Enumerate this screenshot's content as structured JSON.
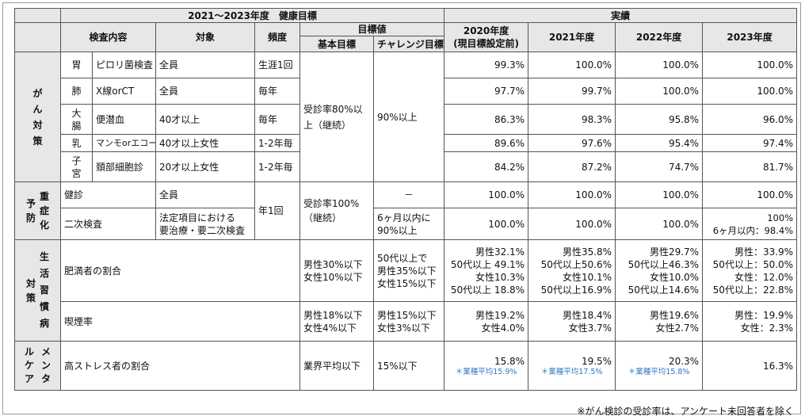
{
  "header": {
    "plan_title": "2021～2023年度　健康目標",
    "results_title": "実績",
    "col_exam": "検査内容",
    "col_target": "対象",
    "col_freq": "頻度",
    "col_goal": "目標値",
    "col_goal_basic": "基本目標",
    "col_goal_challenge": "チャレンジ目標",
    "col_2020_line1": "2020年度",
    "col_2020_line2": "(現目標設定前)",
    "col_2021": "2021年度",
    "col_2022": "2022年度",
    "col_2023": "2023年度"
  },
  "cancer": {
    "category": "がん対策",
    "basic_goal": "受診率80%以上（継続）",
    "challenge_goal": "90%以上",
    "rows": [
      {
        "organ": "胃",
        "exam": "ピロリ菌検査",
        "target": "全員",
        "freq": "生涯1回",
        "r2020": "99.3%",
        "r2021": "100.0%",
        "r2022": "100.0%",
        "r2023": "100.0%"
      },
      {
        "organ": "肺",
        "exam": "X線orCT",
        "target": "全員",
        "freq": "毎年",
        "r2020": "97.7%",
        "r2021": "99.7%",
        "r2022": "100.0%",
        "r2023": "100.0%"
      },
      {
        "organ": "大腸",
        "exam": "便潜血",
        "target": "40才以上",
        "freq": "毎年",
        "r2020": "86.3%",
        "r2021": "98.3%",
        "r2022": "95.8%",
        "r2023": "96.0%"
      },
      {
        "organ": "乳",
        "exam": "マンモorエコー",
        "target": "40才以上女性",
        "freq": "1-2年毎",
        "r2020": "89.6%",
        "r2021": "97.6%",
        "r2022": "95.4%",
        "r2023": "97.4%"
      },
      {
        "organ": "子宮",
        "exam": "頚部細胞診",
        "target": "20才以上女性",
        "freq": "1-2年毎",
        "r2020": "84.2%",
        "r2021": "87.2%",
        "r2022": "74.7%",
        "r2023": "81.7%"
      }
    ]
  },
  "prevention": {
    "category": "予防",
    "sub": "重症化",
    "freq": "年1回",
    "basic_goal": "受診率100%（継続）",
    "rows": [
      {
        "exam": "健診",
        "target": "全員",
        "challenge": "－",
        "r2020": "100.0%",
        "r2021": "100.0%",
        "r2022": "100.0%",
        "r2023": "100.0%"
      },
      {
        "exam": "二次検査",
        "target_line1": "法定項目における",
        "target_line2": "要治療・要二次検査",
        "challenge_line1": "6ヶ月以内に",
        "challenge_line2": "90%以上",
        "r2020": "100.0%",
        "r2021": "100.0%",
        "r2022": "100.0%",
        "r2023_line1": "100%",
        "r2023_line2": "6ヶ月以内：98.4%"
      }
    ]
  },
  "lifestyle": {
    "category": "対策",
    "sub": "生活習慣病",
    "obesity": {
      "exam": "肥満者の割合",
      "basic": [
        "男性30%以下",
        "女性10%以下"
      ],
      "challenge": [
        "50代以上で",
        "男性35%以下",
        "女性15%以下"
      ],
      "r2020": [
        "男性32.1%",
        "50代以上 49.1%",
        "女性10.3%",
        "50代以上 18.8%"
      ],
      "r2021": [
        "男性35.8%",
        "50代以上50.6%",
        "女性10.1%",
        "50代以上16.9%"
      ],
      "r2022": [
        "男性29.7%",
        "50代以上46.3%",
        "女性10.0%",
        "50代以上14.6%"
      ],
      "r2023": [
        "男性：33.9%",
        "50代以上：50.0%",
        "女性：12.0%",
        "50代以上：22.8%"
      ]
    },
    "smoking": {
      "exam": "喫煙率",
      "basic": [
        "男性18%以下",
        "女性4%以下"
      ],
      "challenge": [
        "男性15%以下",
        "女性3%以下"
      ],
      "r2020": [
        "男性19.2%",
        "女性4.0%"
      ],
      "r2021": [
        "男性18.4%",
        "女性3.7%"
      ],
      "r2022": [
        "男性19.6%",
        "女性2.7%"
      ],
      "r2023": [
        "男性：19.9%",
        "女性：2.3%"
      ]
    }
  },
  "mental": {
    "category_col1": "メンタ",
    "category_col2": "ルケア",
    "exam": "高ストレス者の割合",
    "basic": "業界平均以下",
    "challenge": "15%以下",
    "r2020": "15.8%",
    "r2020_note": "＊業種平均15.9%",
    "r2021": "19.5%",
    "r2021_note": "＊業種平均17.5%",
    "r2022": "20.3%",
    "r2022_note": "＊業種平均15.8%",
    "r2023": "16.3%"
  },
  "footnote": "※がん検診の受診率は、アンケート未回答者を除く",
  "colors": {
    "header_bg": "#e7e7e7",
    "note_blue": "#2f78c4",
    "border": "#555555"
  }
}
